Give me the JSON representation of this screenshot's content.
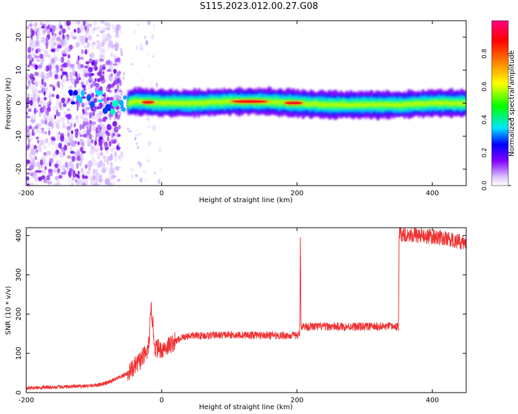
{
  "title": "S115.2023.012.00.27.G08",
  "chart_data": [
    {
      "type": "heatmap",
      "description_axes": true,
      "xlabel": "Height of straight line (km)",
      "ylabel": "Frequency (Hz)",
      "xlim": [
        -200,
        450
      ],
      "ylim": [
        -25,
        25
      ],
      "xticks": [
        -200,
        0,
        200,
        400
      ],
      "yticks": [
        20,
        10,
        0,
        -10,
        -20
      ],
      "colorbar": {
        "label": "Normalized spectral amplitude",
        "range": [
          0,
          1
        ],
        "ticks": [
          "0.0",
          "0.2",
          "0.4",
          "0.6",
          "0.8"
        ],
        "tick_values": [
          0.0,
          0.2,
          0.4,
          0.6,
          0.8
        ],
        "colors": [
          "#ffffff",
          "#e0c8ff",
          "#8000ff",
          "#0000ff",
          "#00e5ff",
          "#00ff00",
          "#ffff00",
          "#ff8000",
          "#ff0000",
          "#ff0080"
        ]
      },
      "ridge": {
        "center_frequency": [
          [
            -130,
            2
          ],
          [
            -110,
            1.5
          ],
          [
            -90,
            1
          ],
          [
            -75,
            0
          ],
          [
            -60,
            -1.5
          ],
          [
            -50,
            0
          ],
          [
            -40,
            0.5
          ],
          [
            0,
            0
          ],
          [
            50,
            0
          ],
          [
            100,
            0.5
          ],
          [
            150,
            0.5
          ],
          [
            200,
            0
          ],
          [
            250,
            -0.5
          ],
          [
            300,
            -0.5
          ],
          [
            350,
            -0.5
          ],
          [
            400,
            0
          ],
          [
            450,
            0
          ]
        ],
        "peak_segments_km": [
          [
            -30,
            -10
          ],
          [
            100,
            160
          ],
          [
            180,
            210
          ]
        ]
      }
    },
    {
      "type": "line",
      "xlabel": "Height of straight line (km)",
      "ylabel": "SNR (10 * v/v)",
      "xlim": [
        -200,
        450
      ],
      "ylim": [
        0,
        420
      ],
      "xticks": [
        -200,
        0,
        200,
        400
      ],
      "yticks": [
        0,
        100,
        200,
        300,
        400
      ],
      "series": [
        {
          "color": "#f03030",
          "x": [
            -200,
            -150,
            -100,
            -80,
            -60,
            -50,
            -40,
            -30,
            -20,
            -15,
            -10,
            0,
            10,
            20,
            30,
            40,
            60,
            100,
            150,
            200,
            204,
            205,
            206,
            208,
            210,
            250,
            300,
            349,
            350,
            351,
            380,
            410,
            440,
            450
          ],
          "y": [
            12,
            14,
            18,
            25,
            40,
            50,
            65,
            85,
            105,
            215,
            115,
            110,
            120,
            130,
            140,
            145,
            145,
            147,
            146,
            145,
            148,
            400,
            170,
            170,
            168,
            168,
            168,
            168,
            165,
            405,
            400,
            395,
            385,
            380
          ]
        }
      ]
    }
  ]
}
